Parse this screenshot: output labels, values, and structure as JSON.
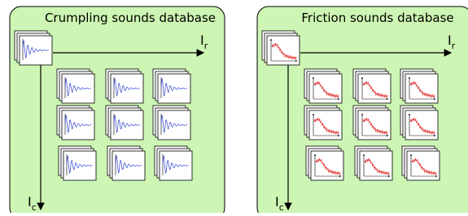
{
  "panels": [
    {
      "title": "Crumpling sounds database",
      "x_axis": {
        "symbol": "I",
        "subscript": "r"
      },
      "y_axis": {
        "symbol": "I",
        "subscript": "c"
      }
    },
    {
      "title": "Friction sounds database",
      "x_axis": {
        "symbol": "I",
        "subscript": "r"
      },
      "y_axis": {
        "symbol": "I",
        "subscript": "c"
      }
    }
  ]
}
